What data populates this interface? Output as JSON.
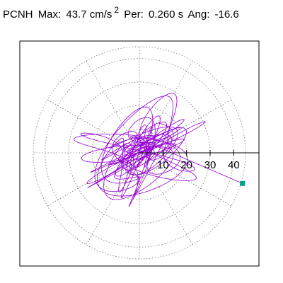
{
  "header": {
    "station": "PCNH",
    "max_label": "Max:",
    "max_value": "43.7 cm/s",
    "max_exp": "2",
    "per_label": "Per:",
    "per_value": "0.260 s",
    "ang_label": "Ang:",
    "ang_value": "-16.6"
  },
  "chart_data": {
    "type": "polar",
    "radial_range": [
      0,
      45
    ],
    "radial_ticks": [
      10,
      20,
      30,
      40
    ],
    "radial_tick_labels": [
      "10",
      "20",
      "30",
      "40"
    ],
    "angular_grid_step_deg": 30,
    "grid": true,
    "series_color": "#9400d3",
    "marker_color": "#00a080",
    "endpoint": {
      "x": 43.7,
      "y": -13.0
    },
    "max_amplitude": 43.7,
    "period_s": 0.26,
    "angle_deg": -16.6
  }
}
